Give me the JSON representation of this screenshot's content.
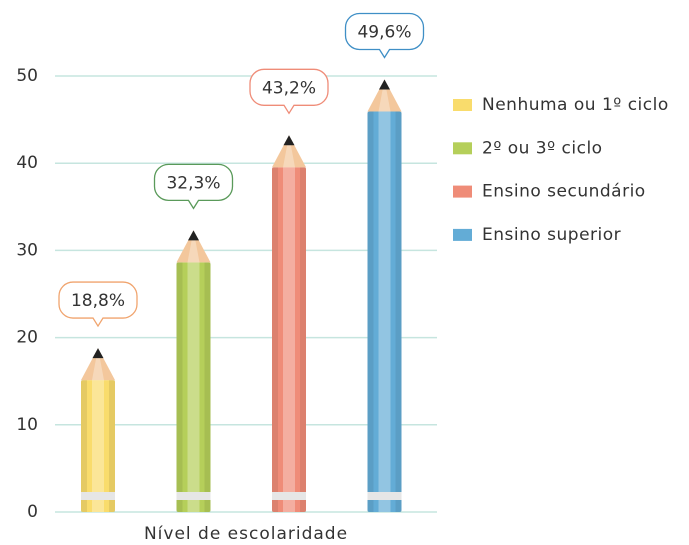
{
  "chart_data": {
    "type": "pencil-bar",
    "x_label": "Nível de escolaridade",
    "categories": [
      null
    ],
    "series": [
      {
        "name": "Nenhuma ou 1º ciclo",
        "color": "#f9dc6c",
        "border_color": "#f0a46e",
        "values": [
          18.8
        ],
        "value_labels": [
          "18,8%"
        ]
      },
      {
        "name": "2º ou 3º ciclo",
        "color": "#b5cf5a",
        "border_color": "#5a9a5a",
        "values": [
          32.3
        ],
        "value_labels": [
          "32,3%"
        ]
      },
      {
        "name": "Ensino secundário",
        "color": "#ef8c78",
        "border_color": "#ef8c78",
        "values": [
          43.2
        ],
        "value_labels": [
          "43,2%"
        ]
      },
      {
        "name": "Ensino superior",
        "color": "#63acd6",
        "border_color": "#3f8fc6",
        "values": [
          49.6
        ],
        "value_labels": [
          "49,6%"
        ]
      }
    ],
    "ylim": [
      0,
      50
    ],
    "yticks": [
      0,
      10,
      20,
      30,
      40,
      50
    ],
    "grid": true,
    "legend": "right"
  }
}
